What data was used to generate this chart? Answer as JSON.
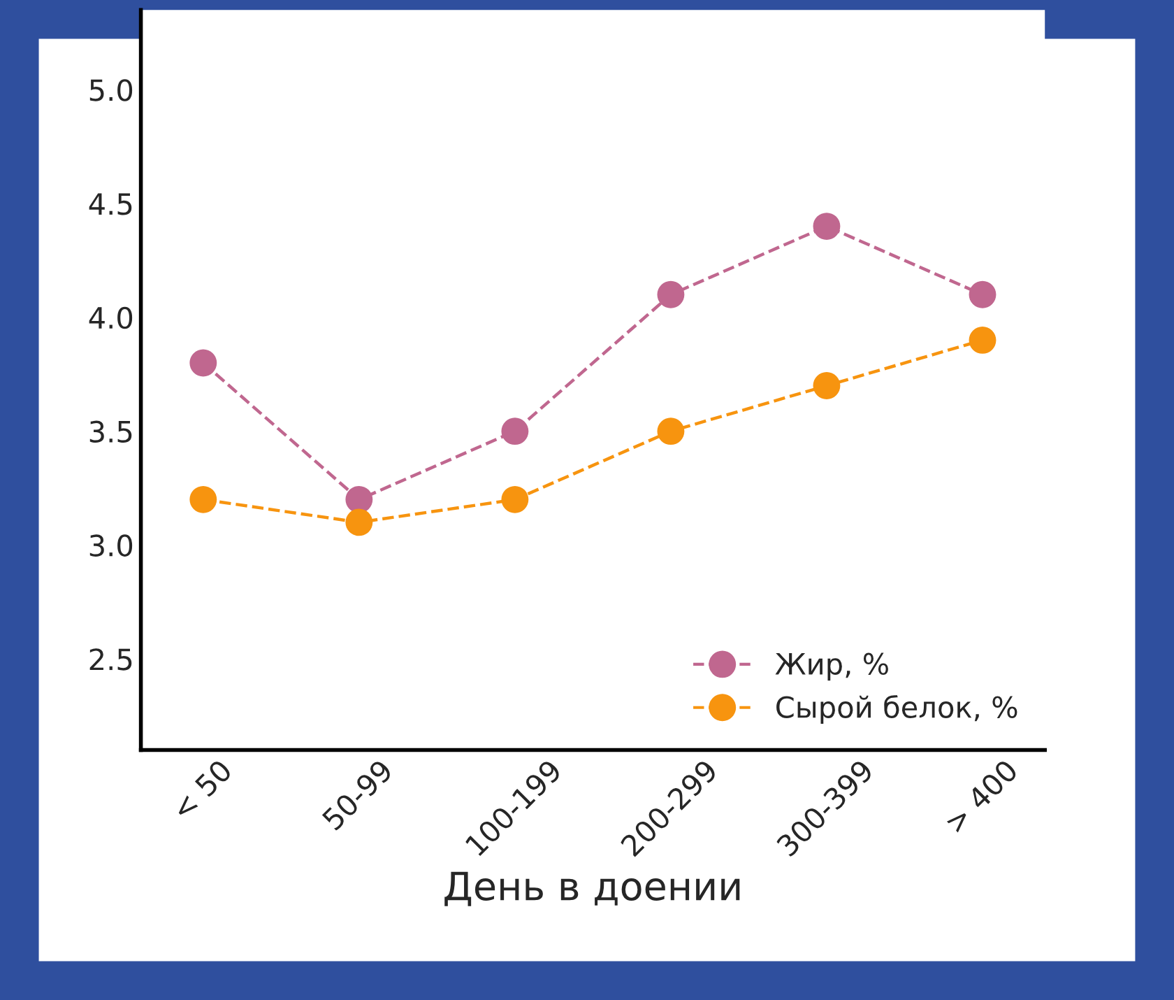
{
  "chart_data": {
    "type": "line",
    "xlabel": "День в доении",
    "categories": [
      "< 50",
      "50-99",
      "100-199",
      "200-299",
      "300-399",
      "> 400"
    ],
    "series": [
      {
        "name": "Жир, %",
        "color": "#c0678f",
        "values": [
          3.8,
          3.2,
          3.5,
          4.1,
          4.4,
          4.1
        ]
      },
      {
        "name": "Сырой белок, %",
        "color": "#f7940f",
        "values": [
          3.2,
          3.1,
          3.2,
          3.5,
          3.7,
          3.9
        ]
      }
    ],
    "ylim": [
      2.1,
      5.35
    ],
    "yticks": [
      {
        "value": 2.5,
        "label": "2.5"
      },
      {
        "value": 3.0,
        "label": "3.0"
      },
      {
        "value": 3.5,
        "label": "3.5"
      },
      {
        "value": 4.0,
        "label": "4.0"
      },
      {
        "value": 4.5,
        "label": "4.5"
      },
      {
        "value": 5.0,
        "label": "5.0"
      }
    ],
    "grid": false,
    "legend": "bottom right",
    "marker": "circle",
    "line_style": "dashed"
  }
}
